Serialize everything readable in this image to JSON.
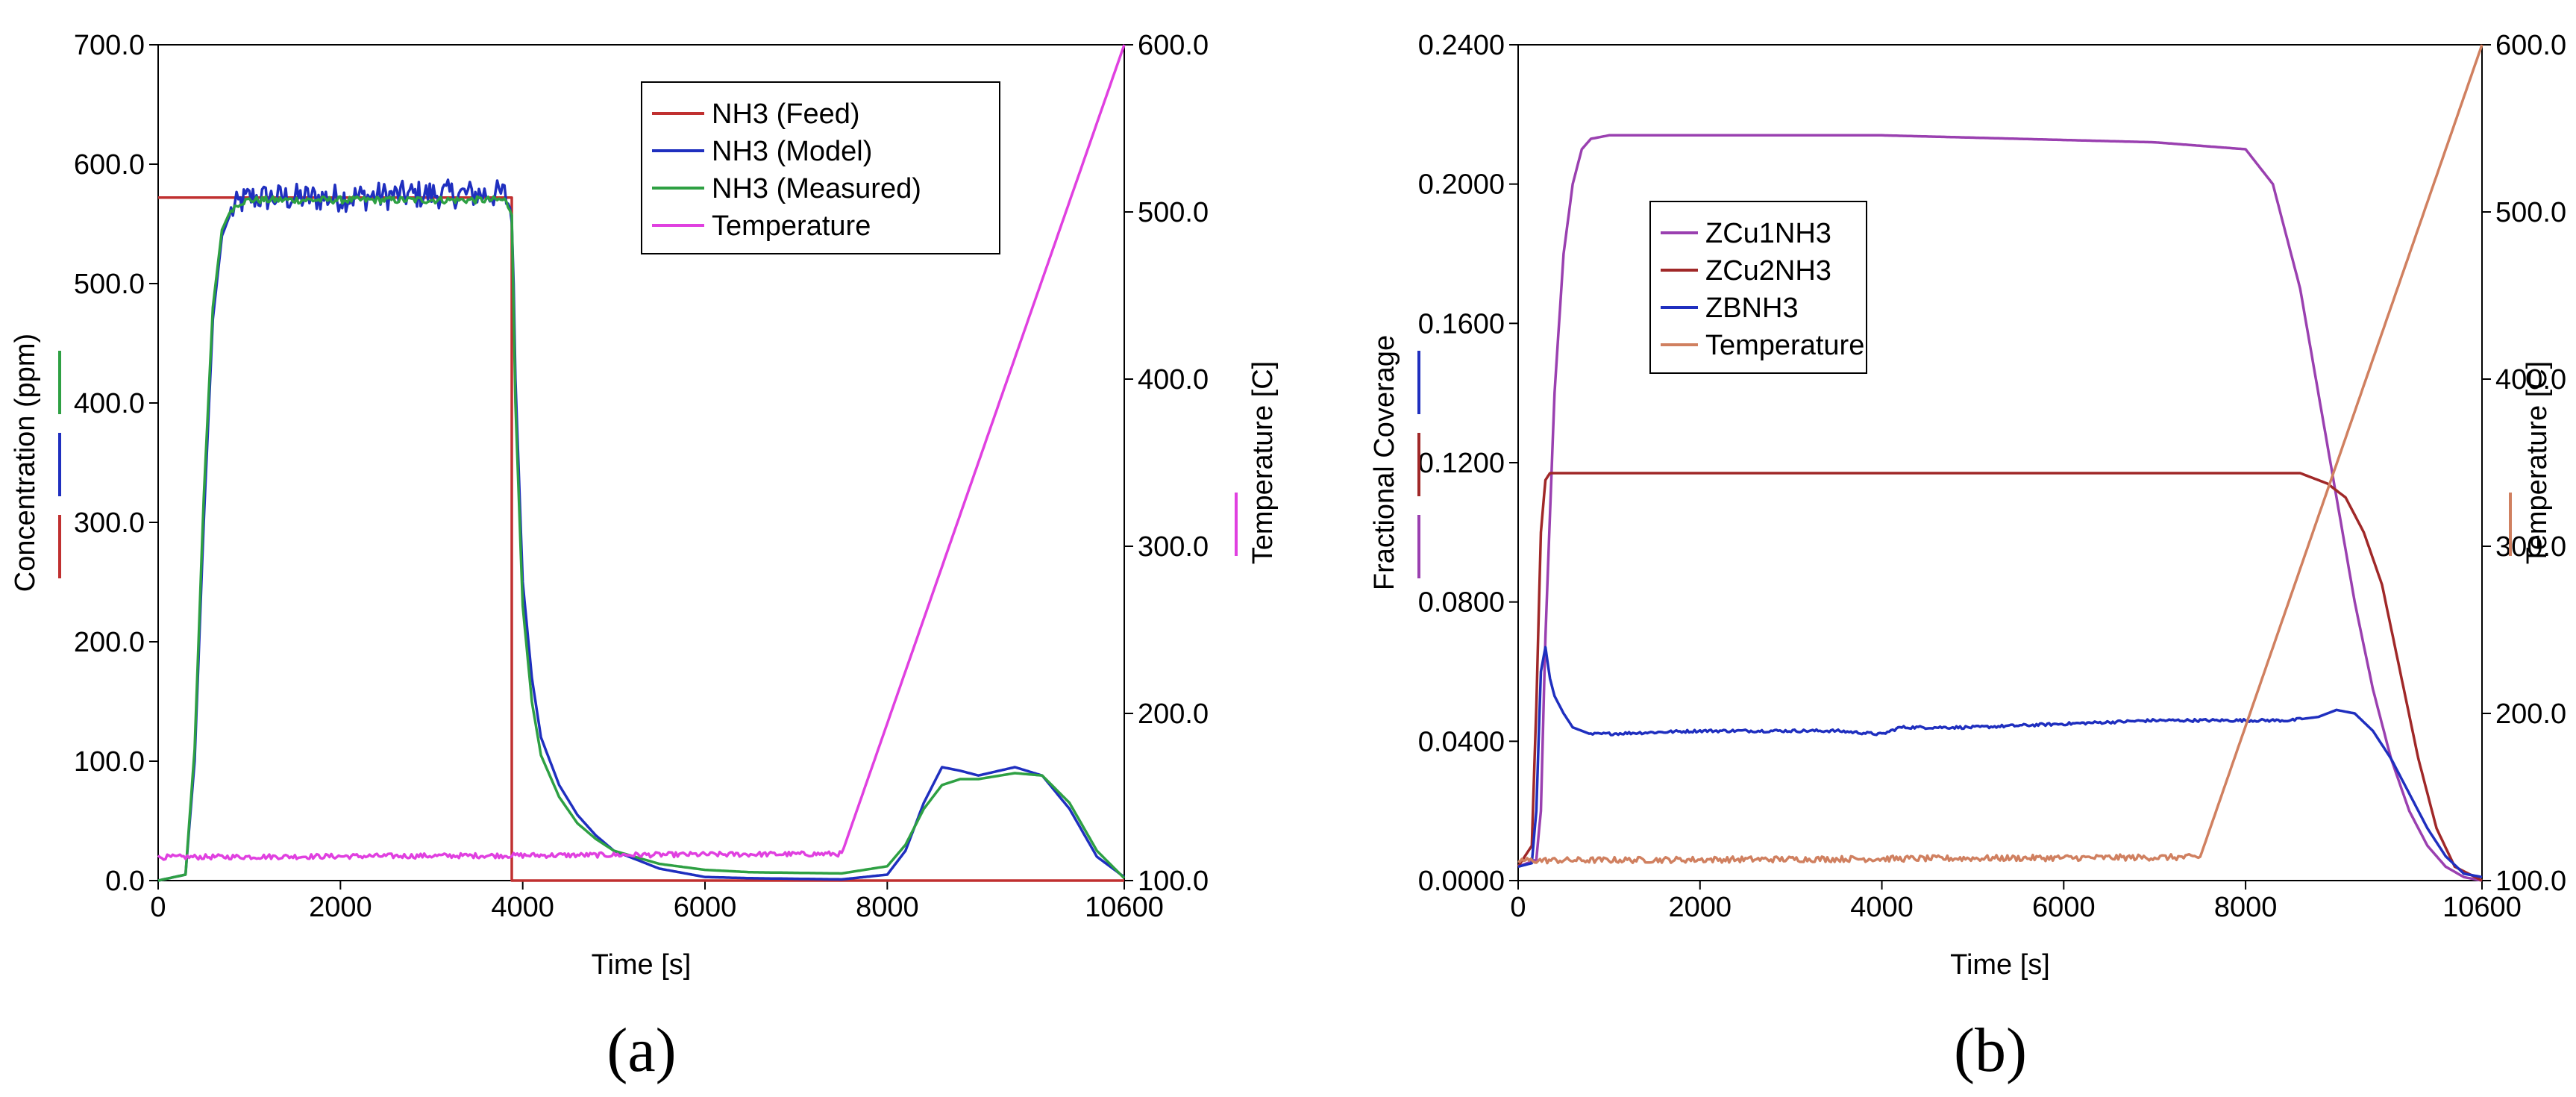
{
  "chart_data": [
    {
      "panel_label": "(a)",
      "type": "line",
      "xlabel": "Time [s]",
      "ylabel": "Concentration (ppm)",
      "y2label": "Temperature [C]",
      "xlim": [
        0,
        10600
      ],
      "ylim": [
        0,
        700
      ],
      "y2lim": [
        100,
        600
      ],
      "x_ticks": [
        "0",
        "2000",
        "4000",
        "6000",
        "8000",
        "10600"
      ],
      "x_tick_values": [
        0,
        2000,
        4000,
        6000,
        8000,
        10600
      ],
      "y_ticks": [
        "0.0",
        "100.0",
        "200.0",
        "300.0",
        "400.0",
        "500.0",
        "600.0",
        "700.0"
      ],
      "y_tick_values": [
        0,
        100,
        200,
        300,
        400,
        500,
        600,
        700
      ],
      "y2_ticks": [
        "100.0",
        "200.0",
        "300.0",
        "400.0",
        "500.0",
        "600.0"
      ],
      "y2_tick_values": [
        100,
        200,
        300,
        400,
        500,
        600
      ],
      "legend_position": "top-right",
      "ylabel_markers": [
        "#2ea043",
        "#1f2fbf",
        "#c03030"
      ],
      "y2label_markers": [
        "#e040e0"
      ],
      "series": [
        {
          "name": "NH3 (Feed)",
          "axis": "left",
          "color": "#c03030",
          "noise": 0,
          "x": [
            0,
            3880,
            3880,
            10600
          ],
          "y": [
            572,
            572,
            0,
            0
          ]
        },
        {
          "name": "NH3 (Model)",
          "axis": "left",
          "color": "#1f2fbf",
          "noise": 12,
          "noise_range": [
            800,
            3900
          ],
          "x": [
            0,
            300,
            400,
            500,
            600,
            700,
            800,
            900,
            1000,
            2000,
            3000,
            3800,
            3880,
            3920,
            4000,
            4100,
            4200,
            4400,
            4600,
            4800,
            5000,
            5500,
            6000,
            6500,
            7500,
            8000,
            8200,
            8400,
            8600,
            8800,
            9000,
            9400,
            9700,
            10000,
            10300,
            10600
          ],
          "y": [
            0,
            5,
            100,
            300,
            470,
            540,
            560,
            568,
            572,
            572,
            575,
            575,
            560,
            420,
            250,
            170,
            120,
            80,
            55,
            38,
            25,
            10,
            3,
            2,
            1,
            5,
            25,
            65,
            95,
            92,
            88,
            95,
            88,
            60,
            20,
            3
          ]
        },
        {
          "name": "NH3 (Measured)",
          "axis": "left",
          "color": "#2ea043",
          "noise": 3,
          "noise_range": [
            800,
            3900
          ],
          "x": [
            0,
            300,
            400,
            500,
            600,
            700,
            800,
            900,
            1000,
            2000,
            3000,
            3800,
            3880,
            3920,
            4000,
            4100,
            4200,
            4400,
            4600,
            4800,
            5000,
            5500,
            6000,
            6500,
            7500,
            8000,
            8200,
            8400,
            8600,
            8800,
            9000,
            9400,
            9700,
            10000,
            10300,
            10600
          ],
          "y": [
            0,
            5,
            110,
            320,
            480,
            545,
            562,
            568,
            570,
            570,
            570,
            570,
            560,
            400,
            230,
            150,
            105,
            70,
            48,
            35,
            25,
            14,
            9,
            7,
            6,
            12,
            30,
            60,
            80,
            85,
            85,
            90,
            88,
            65,
            25,
            2
          ]
        },
        {
          "name": "Temperature",
          "axis": "right",
          "color": "#e040e0",
          "noise": 1.5,
          "noise_range": [
            0,
            7500
          ],
          "x": [
            0,
            7500,
            10600
          ],
          "y": [
            114,
            116,
            600
          ]
        }
      ]
    },
    {
      "panel_label": "(b)",
      "type": "line",
      "xlabel": "Time [s]",
      "ylabel": "Fractional Coverage",
      "y2label": "Temperature [C]",
      "xlim": [
        0,
        10600
      ],
      "ylim": [
        0,
        0.24
      ],
      "y2lim": [
        100,
        600
      ],
      "x_ticks": [
        "0",
        "2000",
        "4000",
        "6000",
        "8000",
        "10600"
      ],
      "x_tick_values": [
        0,
        2000,
        4000,
        6000,
        8000,
        10600
      ],
      "y_ticks": [
        "0.0000",
        "0.0400",
        "0.0800",
        "0.1200",
        "0.1600",
        "0.2000",
        "0.2400"
      ],
      "y_tick_values": [
        0,
        0.04,
        0.08,
        0.12,
        0.16,
        0.2,
        0.24
      ],
      "y2_ticks": [
        "100.0",
        "200.0",
        "300.0",
        "400.0",
        "500.0",
        "600.0"
      ],
      "y2_tick_values": [
        100,
        200,
        300,
        400,
        500,
        600
      ],
      "legend_position": "top-left",
      "ylabel_markers": [
        "#1f2fbf",
        "#a02828",
        "#9a40b0"
      ],
      "y2label_markers": [
        "#d08060"
      ],
      "series": [
        {
          "name": "ZCu1NH3",
          "axis": "left",
          "color": "#9a40b0",
          "noise": 0,
          "x": [
            0,
            200,
            250,
            300,
            400,
            500,
            600,
            700,
            800,
            1000,
            4000,
            7000,
            8000,
            8300,
            8600,
            8800,
            9000,
            9200,
            9400,
            9600,
            9800,
            10000,
            10200,
            10400,
            10600
          ],
          "y": [
            0.004,
            0.006,
            0.02,
            0.07,
            0.14,
            0.18,
            0.2,
            0.21,
            0.213,
            0.214,
            0.214,
            0.212,
            0.21,
            0.2,
            0.17,
            0.14,
            0.11,
            0.08,
            0.055,
            0.035,
            0.02,
            0.01,
            0.004,
            0.001,
            0
          ]
        },
        {
          "name": "ZCu2NH3",
          "axis": "left",
          "color": "#a02828",
          "noise": 0,
          "x": [
            0,
            150,
            200,
            250,
            300,
            350,
            8600,
            8900,
            9100,
            9300,
            9500,
            9700,
            9900,
            10100,
            10300,
            10600
          ],
          "y": [
            0.004,
            0.01,
            0.05,
            0.1,
            0.115,
            0.117,
            0.117,
            0.114,
            0.11,
            0.1,
            0.085,
            0.06,
            0.035,
            0.015,
            0.004,
            0
          ]
        },
        {
          "name": "ZBNH3",
          "axis": "left",
          "color": "#1f2fbf",
          "noise": 0.0004,
          "noise_range": [
            800,
            8600
          ],
          "x": [
            0,
            150,
            200,
            250,
            300,
            350,
            400,
            500,
            600,
            800,
            2000,
            3500,
            4000,
            4200,
            5000,
            6000,
            7000,
            8000,
            8500,
            8800,
            9000,
            9200,
            9400,
            9600,
            9800,
            10000,
            10200,
            10400,
            10600
          ],
          "y": [
            0.004,
            0.005,
            0.02,
            0.06,
            0.067,
            0.058,
            0.053,
            0.048,
            0.044,
            0.042,
            0.043,
            0.043,
            0.042,
            0.044,
            0.044,
            0.045,
            0.046,
            0.046,
            0.046,
            0.047,
            0.049,
            0.048,
            0.043,
            0.035,
            0.025,
            0.015,
            0.007,
            0.002,
            0.001
          ]
        },
        {
          "name": "Temperature",
          "axis": "right",
          "color": "#d08060",
          "noise": 1.8,
          "noise_range": [
            0,
            7500
          ],
          "x": [
            0,
            7500,
            10600
          ],
          "y": [
            112,
            114,
            600
          ]
        }
      ]
    }
  ]
}
